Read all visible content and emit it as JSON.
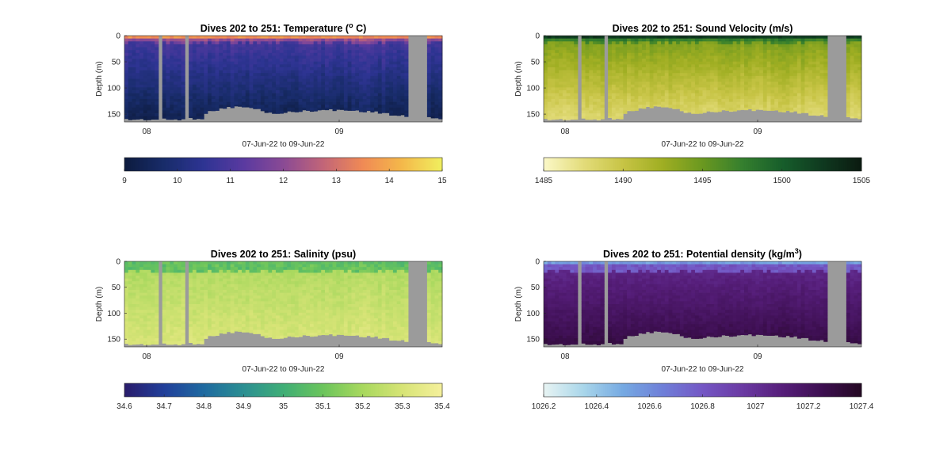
{
  "chart_data": [
    {
      "type": "heatmap",
      "title_parts": [
        "Dives 202 to 251: Temperature (",
        "o",
        " C)"
      ],
      "xlabel": "07-Jun-22 to 09-Jun-22",
      "ylabel": "Depth (m)",
      "x_ticks": [
        "08",
        "09"
      ],
      "y_ticks": [
        "0",
        "50",
        "100",
        "150"
      ],
      "ylim": [
        0,
        165
      ],
      "colorbar": {
        "min": 9,
        "max": 15,
        "ticks": [
          "9",
          "10",
          "11",
          "12",
          "13",
          "14",
          "15"
        ],
        "colormap": [
          "#0d1b3e",
          "#182c6a",
          "#2e3493",
          "#5a3aa0",
          "#8a4a95",
          "#c26578",
          "#f08a55",
          "#f4b94a",
          "#f0ef5e"
        ]
      },
      "field": "temperature",
      "gap_color": "#9b9b9b"
    },
    {
      "type": "heatmap",
      "title_parts": [
        "Dives 202 to 251: Sound Velocity (m/s)"
      ],
      "xlabel": "07-Jun-22 to 09-Jun-22",
      "ylabel": "Depth (m)",
      "x_ticks": [
        "08",
        "09"
      ],
      "y_ticks": [
        "0",
        "50",
        "100",
        "150"
      ],
      "ylim": [
        0,
        165
      ],
      "colorbar": {
        "min": 1485,
        "max": 1505,
        "ticks": [
          "1485",
          "1490",
          "1495",
          "1500",
          "1505"
        ],
        "colormap": [
          "#fbf8c8",
          "#e3dc7a",
          "#c7c445",
          "#9fae22",
          "#6a9820",
          "#357f2e",
          "#175e2b",
          "#0f3a20",
          "#0b1a10"
        ]
      },
      "field": "sound_velocity",
      "gap_color": "#9b9b9b"
    },
    {
      "type": "heatmap",
      "title_parts": [
        "Dives 202 to 251: Salinity (psu)"
      ],
      "xlabel": "07-Jun-22 to 09-Jun-22",
      "ylabel": "Depth (m)",
      "x_ticks": [
        "08",
        "09"
      ],
      "y_ticks": [
        "0",
        "50",
        "100",
        "150"
      ],
      "ylim": [
        0,
        165
      ],
      "colorbar": {
        "min": 34.6,
        "max": 35.4,
        "ticks": [
          "34.6",
          "34.7",
          "34.8",
          "34.9",
          "35",
          "35.1",
          "35.2",
          "35.3",
          "35.4"
        ],
        "colormap": [
          "#2a1c6b",
          "#213f9a",
          "#1f6aa0",
          "#2b8f92",
          "#3fae76",
          "#6cc55c",
          "#a8d85e",
          "#d7e476",
          "#f5f09c"
        ]
      },
      "field": "salinity",
      "gap_color": "#9b9b9b"
    },
    {
      "type": "heatmap",
      "title_parts": [
        "Dives 202 to 251: Potential density (kg/m",
        "3",
        ")"
      ],
      "xlabel": "07-Jun-22 to 09-Jun-22",
      "ylabel": "Depth (m)",
      "x_ticks": [
        "08",
        "09"
      ],
      "y_ticks": [
        "0",
        "50",
        "100",
        "150"
      ],
      "ylim": [
        0,
        165
      ],
      "colorbar": {
        "min": 1026.2,
        "max": 1027.4,
        "ticks": [
          "1026.2",
          "1026.4",
          "1026.6",
          "1026.8",
          "1027",
          "1027.2",
          "1027.4"
        ],
        "colormap": [
          "#e8f4f3",
          "#a9d6ea",
          "#75a9e2",
          "#6f7fd8",
          "#7457c4",
          "#6b3aa3",
          "#561e7a",
          "#3d0f51",
          "#240822"
        ]
      },
      "field": "density",
      "gap_color": "#9b9b9b"
    }
  ]
}
